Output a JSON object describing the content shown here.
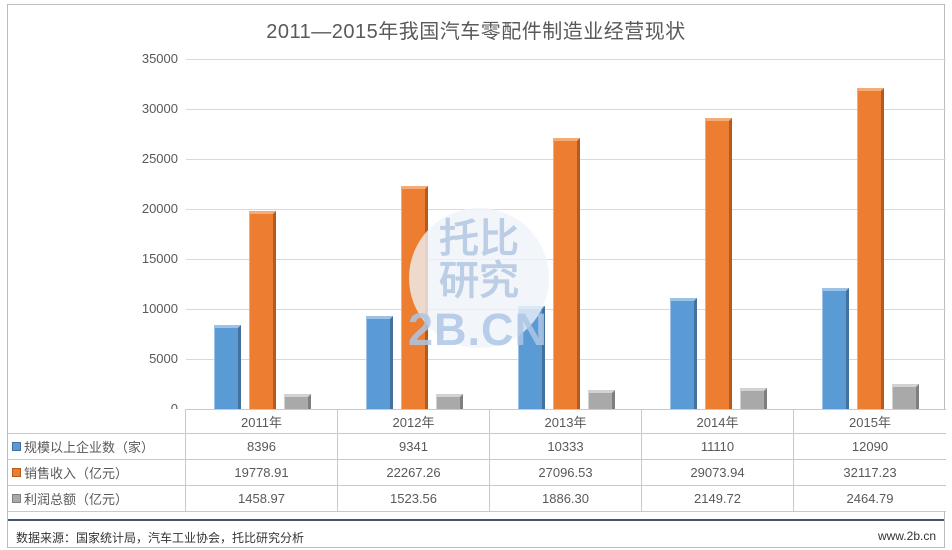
{
  "title": "2011—2015年我国汽车零配件制造业经营现状",
  "watermark": {
    "line1": "托比",
    "line2": "研究",
    "line3": "2B.CN"
  },
  "footer": {
    "source": "数据来源：国家统计局，汽车工业协会，托比研究分析",
    "site": "www.2b.cn"
  },
  "colors": {
    "blue": {
      "main": "#5b9bd5",
      "light": "#9cc2e5",
      "dark": "#41719c"
    },
    "orange": {
      "main": "#ed7d31",
      "light": "#f5ab74",
      "dark": "#b55a1d"
    },
    "gray": {
      "main": "#a9a9a9",
      "light": "#d2d2d2",
      "dark": "#7f7f7f"
    },
    "gridline": "#d9d9d9",
    "table_border": "#c9c9c9",
    "text": "#595959",
    "footer_rule": "#44546a"
  },
  "chart_data": {
    "type": "bar",
    "title": "2011—2015年我国汽车零配件制造业经营现状",
    "categories": [
      "2011年",
      "2012年",
      "2013年",
      "2014年",
      "2015年"
    ],
    "series": [
      {
        "name": "规模以上企业数（家）",
        "color_key": "blue",
        "values": [
          "8396",
          "9341",
          "10333",
          "11110",
          "12090"
        ]
      },
      {
        "name": "销售收入（亿元）",
        "color_key": "orange",
        "values": [
          "19778.91",
          "22267.26",
          "27096.53",
          "29073.94",
          "32117.23"
        ]
      },
      {
        "name": "利润总额（亿元）",
        "color_key": "gray",
        "values": [
          "1458.97",
          "1523.56",
          "1886.30",
          "2149.72",
          "2464.79"
        ]
      }
    ],
    "xlabel": "",
    "ylabel": "",
    "ylim": [
      0,
      35000
    ],
    "ytick_step": 5000,
    "y_ticks": [
      "0",
      "5000",
      "10000",
      "15000",
      "20000",
      "25000",
      "30000",
      "35000"
    ],
    "grid": true,
    "legend_position": "table-left"
  }
}
